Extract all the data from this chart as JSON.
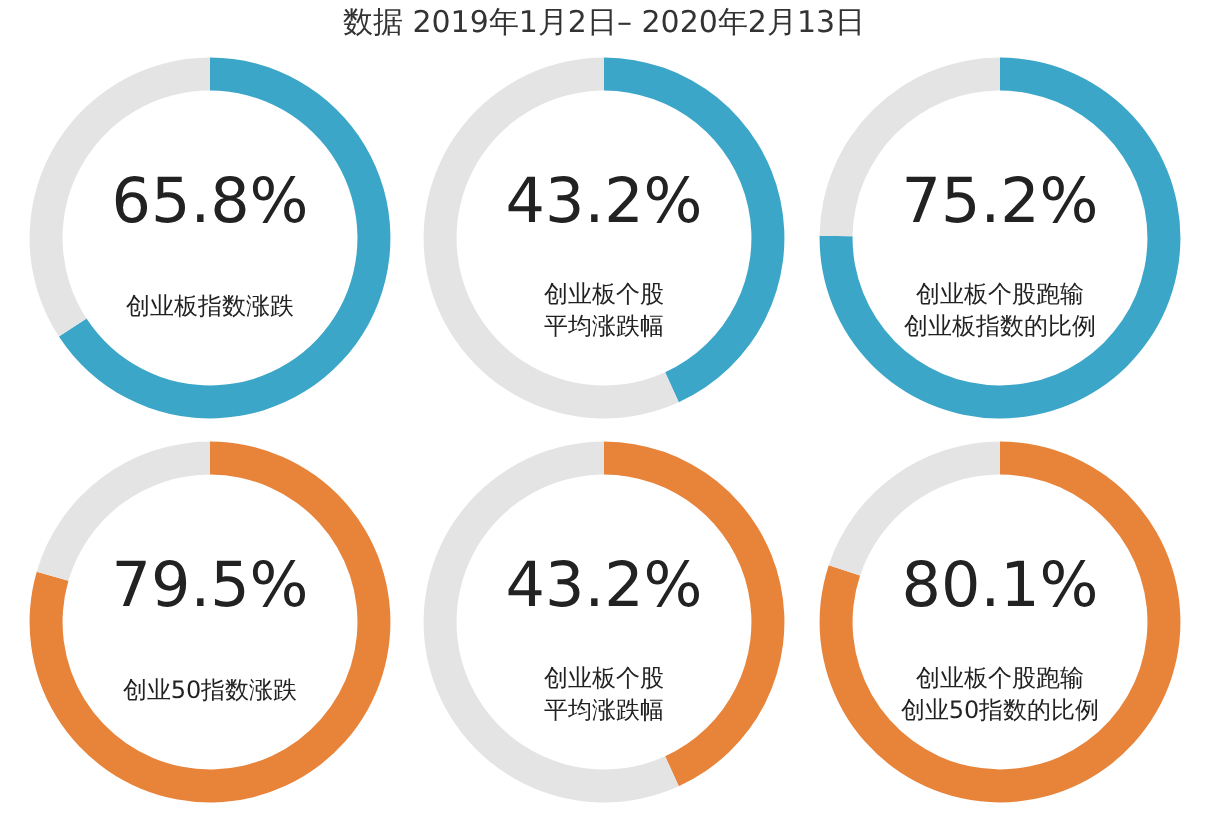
{
  "chart_data": [
    {
      "type": "donut",
      "annotations": [
        "数据 2019年1月2日– 2020年2月13日"
      ],
      "title": "创业板指数涨跌",
      "categories": [
        null,
        null
      ],
      "values": [
        65.8,
        34.2
      ],
      "colors": [
        "#3ba6c8",
        "#e4e4e4"
      ],
      "value_labels": [
        "65.8%",
        null
      ]
    },
    {
      "type": "donut",
      "title": "创业板个股平均涨跌幅",
      "categories": [
        null,
        null
      ],
      "values": [
        43.2,
        56.8
      ],
      "colors": [
        "#3ba6c8",
        "#e4e4e4"
      ],
      "value_labels": [
        "43.2%",
        null
      ]
    },
    {
      "type": "donut",
      "title": "创业板个股跑输创业板指数的比例",
      "categories": [
        null,
        null
      ],
      "values": [
        75.2,
        24.8
      ],
      "colors": [
        "#3ba6c8",
        "#e4e4e4"
      ],
      "value_labels": [
        "75.2%",
        null
      ]
    },
    {
      "type": "donut",
      "title": "创业50指数涨跌",
      "categories": [
        null,
        null
      ],
      "values": [
        79.5,
        20.5
      ],
      "colors": [
        "#e8833a",
        "#e4e4e4"
      ],
      "value_labels": [
        "79.5%",
        null
      ]
    },
    {
      "type": "donut",
      "title": "创业板个股平均涨跌幅",
      "categories": [
        null,
        null
      ],
      "values": [
        43.2,
        56.8
      ],
      "colors": [
        "#e8833a",
        "#e4e4e4"
      ],
      "value_labels": [
        "43.2%",
        null
      ]
    },
    {
      "type": "donut",
      "title": "创业板个股跑输创业50指数的比例",
      "categories": [
        null,
        null
      ],
      "values": [
        80.1,
        19.9
      ],
      "colors": [
        "#e8833a",
        "#e4e4e4"
      ],
      "value_labels": [
        "80.1%",
        null
      ]
    }
  ]
}
